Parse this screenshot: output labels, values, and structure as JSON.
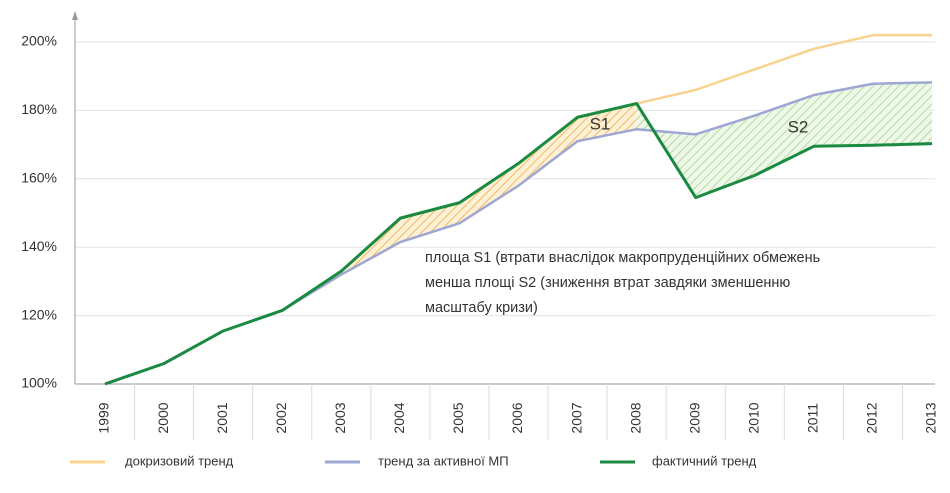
{
  "chart_data": {
    "type": "line",
    "categories": [
      "1999",
      "2000",
      "2001",
      "2002",
      "2003",
      "2004",
      "2005",
      "2006",
      "2007",
      "2008",
      "2009",
      "2010",
      "2011",
      "2012",
      "2013"
    ],
    "series": [
      {
        "name": "докризовий тренд",
        "color": "#f9d38e",
        "values": [
          null,
          null,
          null,
          null,
          null,
          null,
          null,
          null,
          null,
          182,
          186,
          192,
          198,
          202,
          202
        ]
      },
      {
        "name": "тренд за активної МП",
        "color": "#9ea7d3",
        "values": [
          100,
          106,
          115.5,
          121.5,
          132,
          141.5,
          147,
          158,
          171,
          174.5,
          173,
          178.5,
          184.5,
          187.8,
          188.2
        ]
      },
      {
        "name": "фактичний тренд",
        "color": "#1a8a40",
        "values": [
          100,
          106,
          115.5,
          121.5,
          133,
          148.5,
          153,
          164.5,
          178,
          182,
          154.5,
          161,
          169.5,
          169.8,
          170.3
        ]
      }
    ],
    "ylim": [
      100,
      210
    ],
    "yticks": [
      {
        "value": 100,
        "label": "100%"
      },
      {
        "value": 120,
        "label": "120%"
      },
      {
        "value": 140,
        "label": "140%"
      },
      {
        "value": 160,
        "label": "160%"
      },
      {
        "value": 180,
        "label": "180%"
      },
      {
        "value": 200,
        "label": "200%"
      }
    ],
    "grid": true,
    "legend": "bottom",
    "annotations": [
      "S1",
      "S2",
      "площа S1 (втрати внаслідок макропруденційних обмежень",
      "менша площі S2 (зниження втрат завдяки зменшенню",
      "масштабу кризи)"
    ]
  }
}
